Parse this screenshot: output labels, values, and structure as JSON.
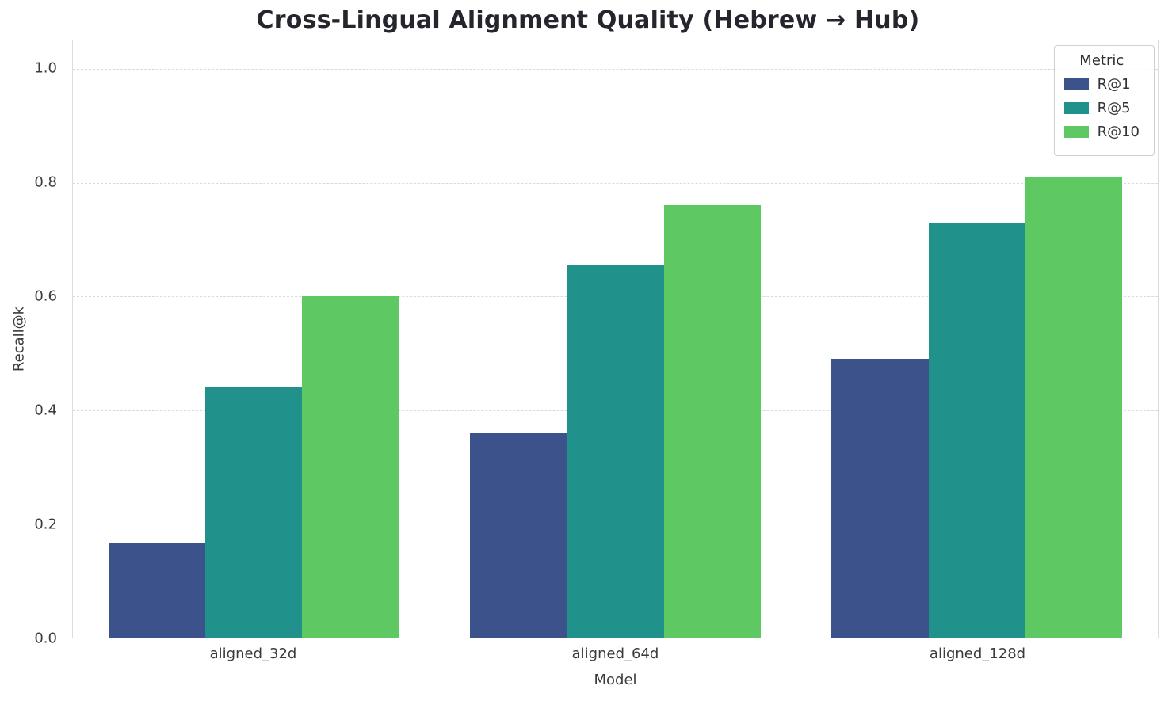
{
  "chart_data": {
    "type": "bar",
    "title": "Cross-Lingual Alignment Quality (Hebrew → Hub)",
    "xlabel": "Model",
    "ylabel": "Recall@k",
    "categories": [
      "aligned_32d",
      "aligned_64d",
      "aligned_128d"
    ],
    "series": [
      {
        "name": "R@1",
        "color": "#3b528b",
        "values": [
          0.167,
          0.36,
          0.49
        ]
      },
      {
        "name": "R@5",
        "color": "#21918c",
        "values": [
          0.44,
          0.655,
          0.73
        ]
      },
      {
        "name": "R@10",
        "color": "#5ec962",
        "values": [
          0.6,
          0.76,
          0.81
        ]
      }
    ],
    "ylim": [
      0,
      1.05
    ],
    "yticks": [
      0.0,
      0.2,
      0.4,
      0.6,
      0.8,
      1.0
    ],
    "ytick_labels": [
      "0.0",
      "0.2",
      "0.4",
      "0.6",
      "0.8",
      "1.0"
    ],
    "legend_title": "Metric",
    "legend_position": "upper right",
    "grid": "horizontal-dashed",
    "background_color": "#ffffff"
  }
}
